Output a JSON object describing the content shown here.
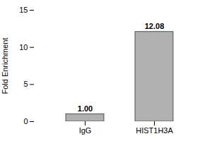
{
  "chart_data": {
    "type": "bar",
    "categories": [
      "IgG",
      "HIST1H3A"
    ],
    "values": [
      1.0,
      12.08
    ],
    "value_labels": [
      "1.00",
      "12.08"
    ],
    "data_labels": true,
    "color": "#b0b0b0",
    "ylabel": "Fold Enrichment",
    "ylim": [
      0,
      15
    ],
    "yticks": [
      0,
      5,
      10,
      15
    ],
    "grid": false
  }
}
